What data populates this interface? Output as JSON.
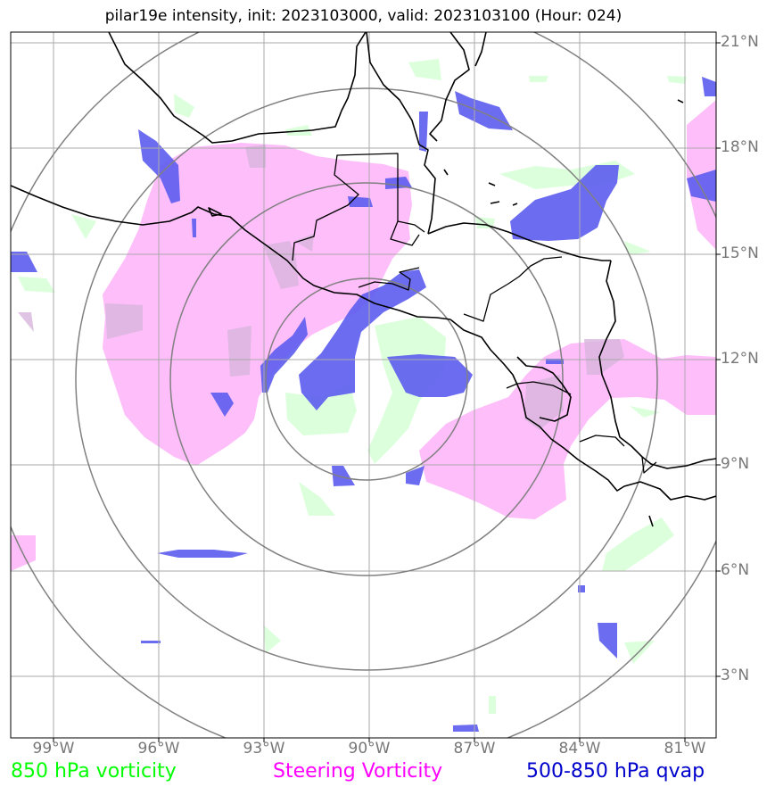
{
  "title": "pilar19e intensity, init: 2023103000, valid: 2023103100 (Hour: 024)",
  "lon_ticks": [
    "99°W",
    "96°W",
    "93°W",
    "90°W",
    "87°W",
    "84°W",
    "81°W"
  ],
  "lat_ticks": [
    "21°N",
    "18°N",
    "15°N",
    "12°N",
    "9°N",
    "6°N",
    "3°N"
  ],
  "legend": {
    "vorticity_850": "850 hPa vorticity",
    "steering": "Steering Vorticity",
    "qvap": "500-850 hPa qvap"
  },
  "colors": {
    "vorticity_850": "#00ff00",
    "steering": "#ff00ff",
    "qvap": "#0000cc",
    "vort_fill": "#dcffdc",
    "steer_fill": "#fdbaf9",
    "qvap_fill": "#6f6fe8"
  },
  "range_rings": {
    "center_lon": -90,
    "center_lat": 11.5,
    "count": 4
  }
}
